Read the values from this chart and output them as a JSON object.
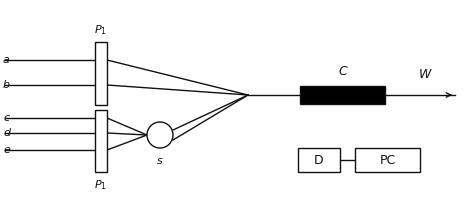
{
  "bg_color": "#ffffff",
  "line_color": "#111111",
  "label_a": "a",
  "label_b": "b",
  "label_c": "c",
  "label_d": "d",
  "label_e": "e",
  "label_S": "s",
  "label_C": "C",
  "label_W": "W",
  "label_D": "D",
  "label_PC": "PC",
  "fig_width": 4.74,
  "fig_height": 2.0,
  "dpi": 100,
  "lw": 1.0,
  "p1_top_label": "P$_1$",
  "p1_bot_label": "P$_1$"
}
